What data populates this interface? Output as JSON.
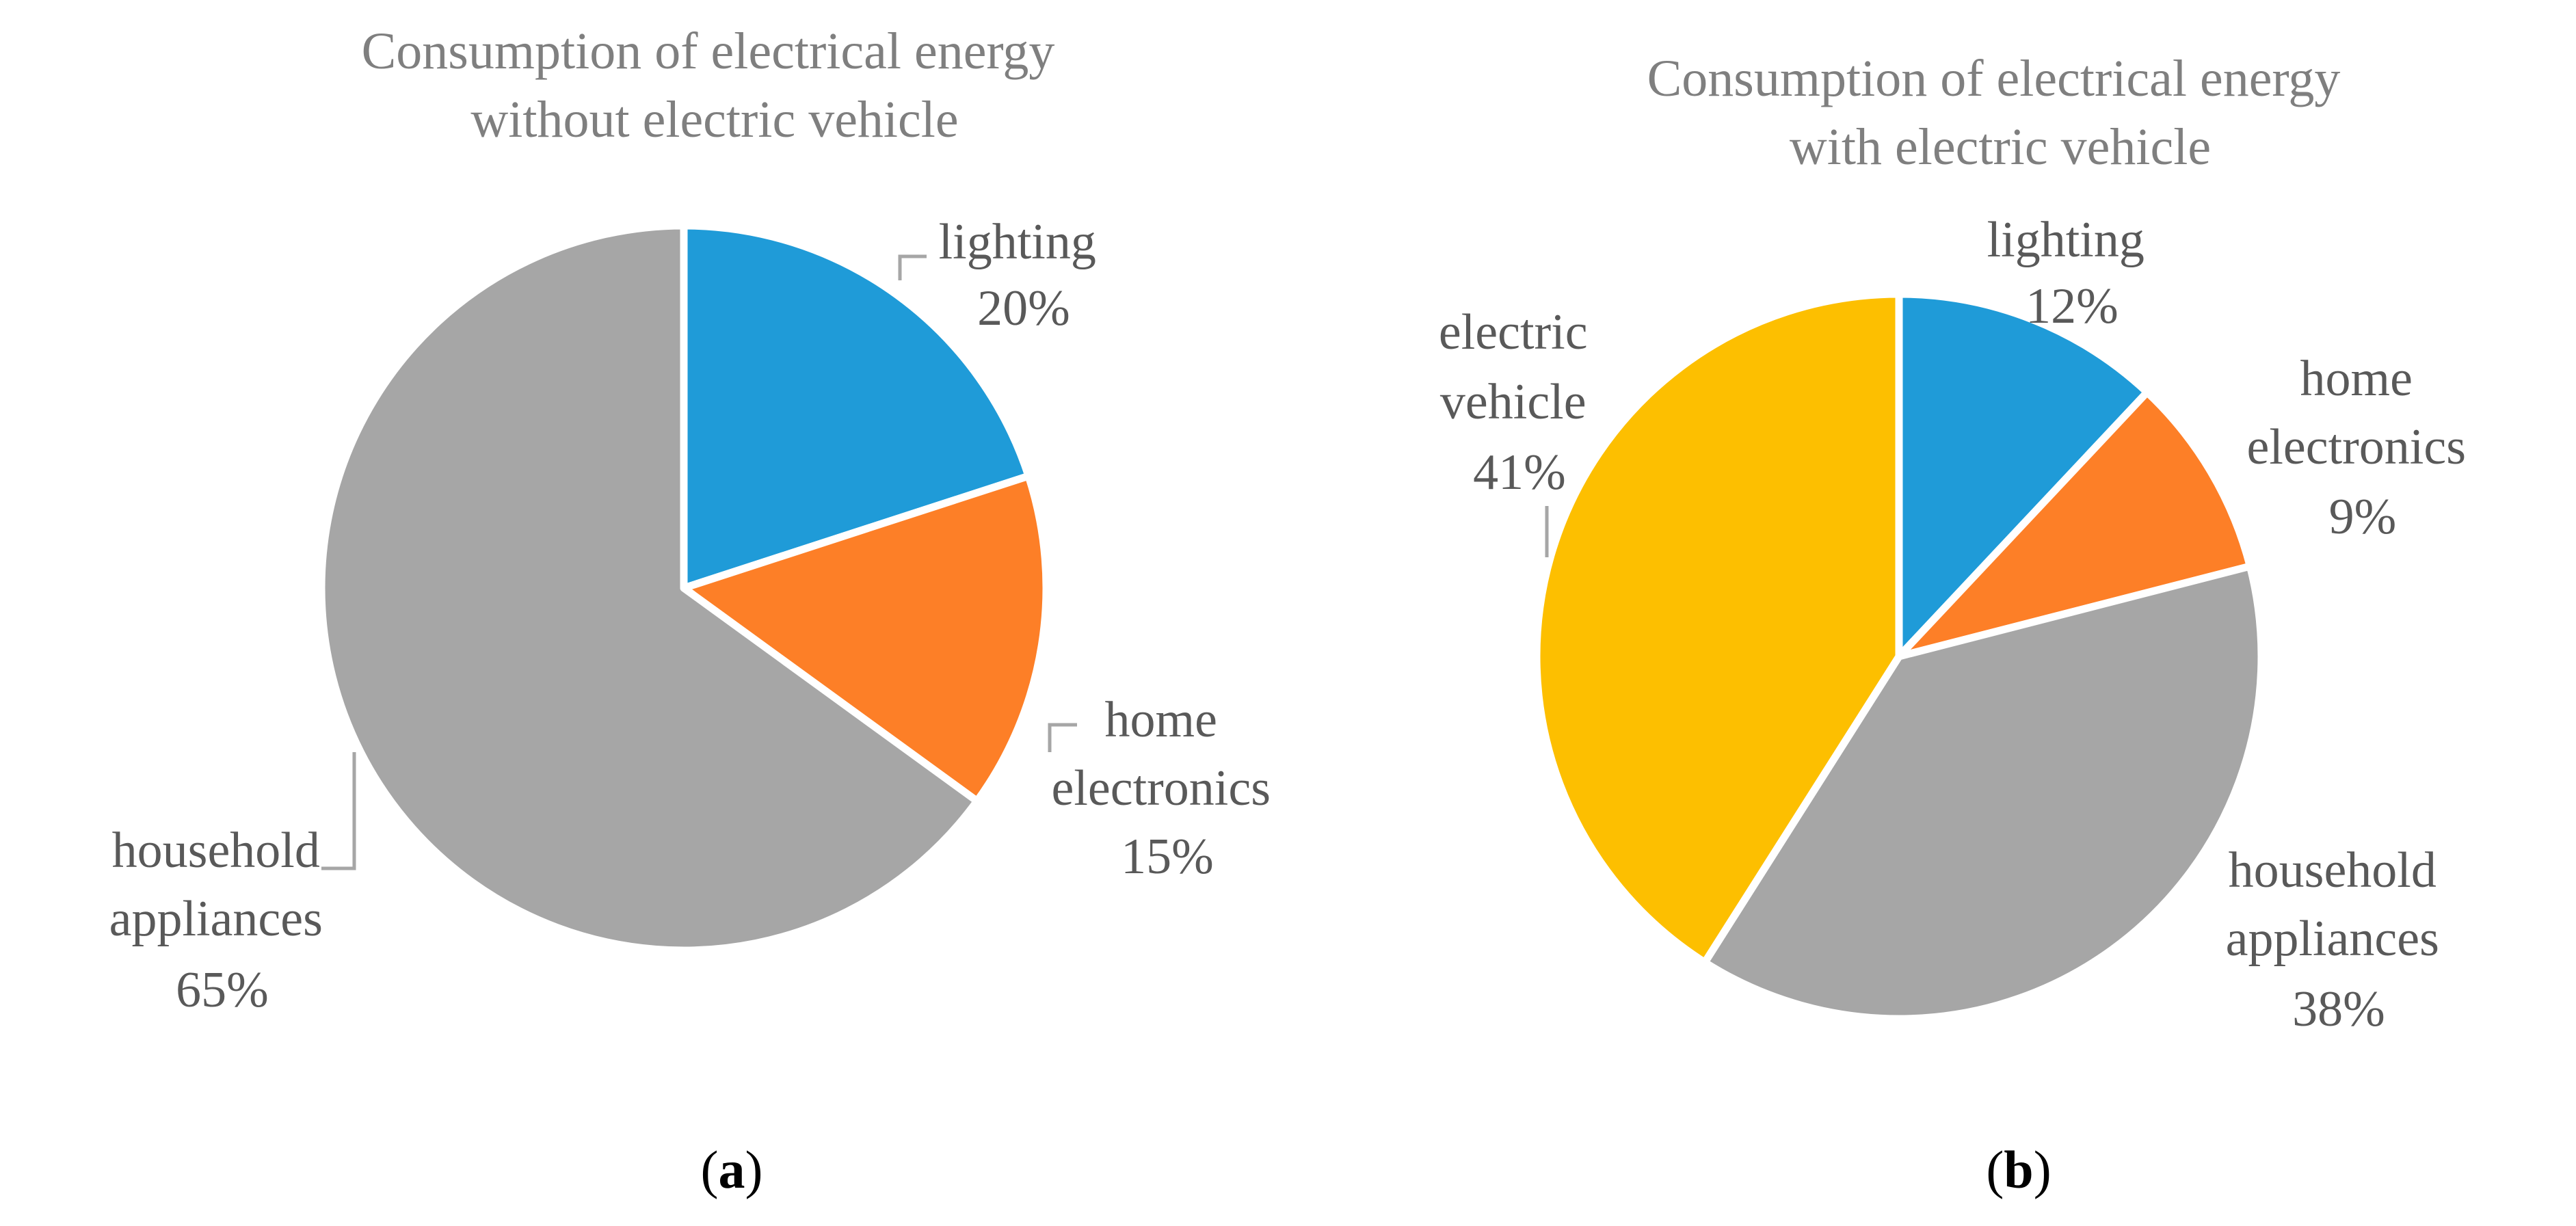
{
  "chart_data": [
    {
      "type": "pie",
      "title": [
        "Consumption of electrical energy",
        "without electric vehicle"
      ],
      "caption": {
        "open": "(",
        "letter": "a",
        "close": ")"
      },
      "slices": [
        {
          "name": "lighting",
          "label": [
            "lighting"
          ],
          "value": 20,
          "value_label": "20%",
          "color": "#1f9bd8"
        },
        {
          "name": "home-electronics",
          "label": [
            "home",
            "electronics"
          ],
          "value": 15,
          "value_label": "15%",
          "color": "#fd7f27"
        },
        {
          "name": "household-appliances",
          "label": [
            "household",
            "appliances"
          ],
          "value": 65,
          "value_label": "65%",
          "color": "#a6a6a6"
        }
      ]
    },
    {
      "type": "pie",
      "title": [
        "Consumption of electrical energy",
        "with electric vehicle"
      ],
      "caption": {
        "open": "(",
        "letter": "b",
        "close": ")"
      },
      "slices": [
        {
          "name": "lighting",
          "label": [
            "lighting"
          ],
          "value": 12,
          "value_label": "12%",
          "color": "#1f9bd8"
        },
        {
          "name": "home-electronics",
          "label": [
            "home",
            "electronics"
          ],
          "value": 9,
          "value_label": "9%",
          "color": "#fd7f27"
        },
        {
          "name": "household-appliances",
          "label": [
            "household",
            "appliances"
          ],
          "value": 38,
          "value_label": "38%",
          "color": "#a6a6a6"
        },
        {
          "name": "electric-vehicle",
          "label": [
            "electric",
            "vehicle"
          ],
          "value": 41,
          "value_label": "41%",
          "color": "#fdbf00"
        }
      ]
    }
  ]
}
